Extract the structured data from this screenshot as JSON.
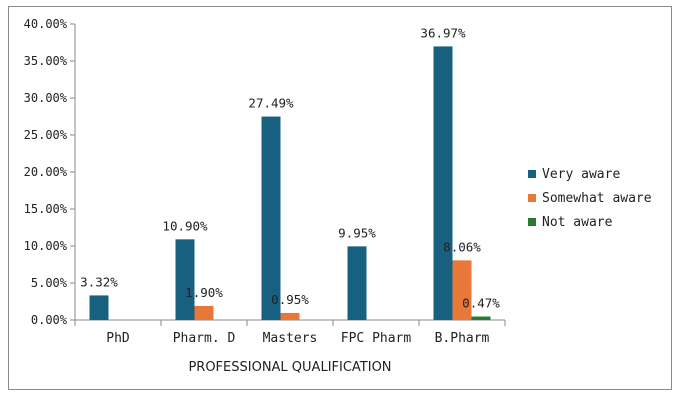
{
  "chart_data": {
    "type": "bar",
    "xlabel": "PROFESSIONAL QUALIFICATION",
    "ylabel": "",
    "categories": [
      "PhD",
      "Pharm. D",
      "Masters",
      "FPC Pharm",
      "B.Pharm"
    ],
    "ylim": [
      0,
      40
    ],
    "yticks": [
      "0.00%",
      "5.00%",
      "10.00%",
      "15.00%",
      "20.00%",
      "25.00%",
      "30.00%",
      "35.00%",
      "40.00%"
    ],
    "grid": false,
    "legend_position": "right",
    "series": [
      {
        "name": "Very aware",
        "color": "#17607f",
        "values": [
          3.32,
          10.9,
          27.49,
          9.95,
          36.97
        ],
        "labels": [
          "3.32%",
          "10.90%",
          "27.49%",
          "9.95%",
          "36.97%"
        ]
      },
      {
        "name": "Somewhat aware",
        "color": "#e8783a",
        "values": [
          0,
          1.9,
          0.95,
          0,
          8.06
        ],
        "labels": [
          "",
          "1.90%",
          "0.95%",
          "",
          "8.06%"
        ]
      },
      {
        "name": "Not aware",
        "color": "#2a7a30",
        "values": [
          0,
          0,
          0,
          0,
          0.47
        ],
        "labels": [
          "",
          "",
          "",
          "",
          "0.47%"
        ]
      }
    ]
  }
}
